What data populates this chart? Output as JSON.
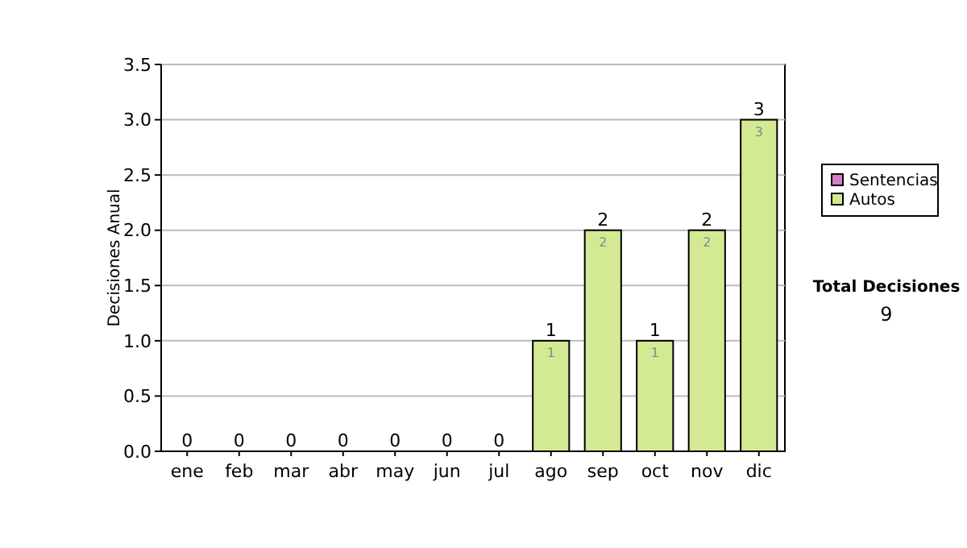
{
  "chart_data": {
    "type": "bar",
    "stacked": true,
    "ylabel": "Decisiones Anual",
    "categories": [
      "ene",
      "feb",
      "mar",
      "abr",
      "may",
      "jun",
      "jul",
      "ago",
      "sep",
      "oct",
      "nov",
      "dic"
    ],
    "series": [
      {
        "name": "Sentencias",
        "color": "#d77ec8",
        "values": [
          0,
          0,
          0,
          0,
          0,
          0,
          0,
          0,
          0,
          0,
          0,
          0
        ]
      },
      {
        "name": "Autos",
        "color": "#d3ea92",
        "values": [
          0,
          0,
          0,
          0,
          0,
          0,
          0,
          1,
          2,
          1,
          2,
          3
        ],
        "value_labels": [
          null,
          null,
          null,
          null,
          null,
          null,
          null,
          "1",
          "2",
          "1",
          "2",
          "3"
        ]
      }
    ],
    "totals": [
      "0",
      "0",
      "0",
      "0",
      "0",
      "0",
      "0",
      "1",
      "2",
      "1",
      "2",
      "3"
    ],
    "ylim": [
      0,
      3.5
    ],
    "yticks": [
      {
        "value": 0,
        "label": "0.0"
      },
      {
        "value": 0.5,
        "label": "0.5"
      },
      {
        "value": 1,
        "label": "1.0"
      },
      {
        "value": 1.5,
        "label": "1.5"
      },
      {
        "value": 2,
        "label": "2.0"
      },
      {
        "value": 2.5,
        "label": "2.5"
      },
      {
        "value": 3,
        "label": "3.0"
      },
      {
        "value": 3.5,
        "label": "3.5"
      }
    ],
    "grid": "y",
    "legend": "right",
    "annotations": [
      "Total Decisiones",
      "9"
    ]
  }
}
